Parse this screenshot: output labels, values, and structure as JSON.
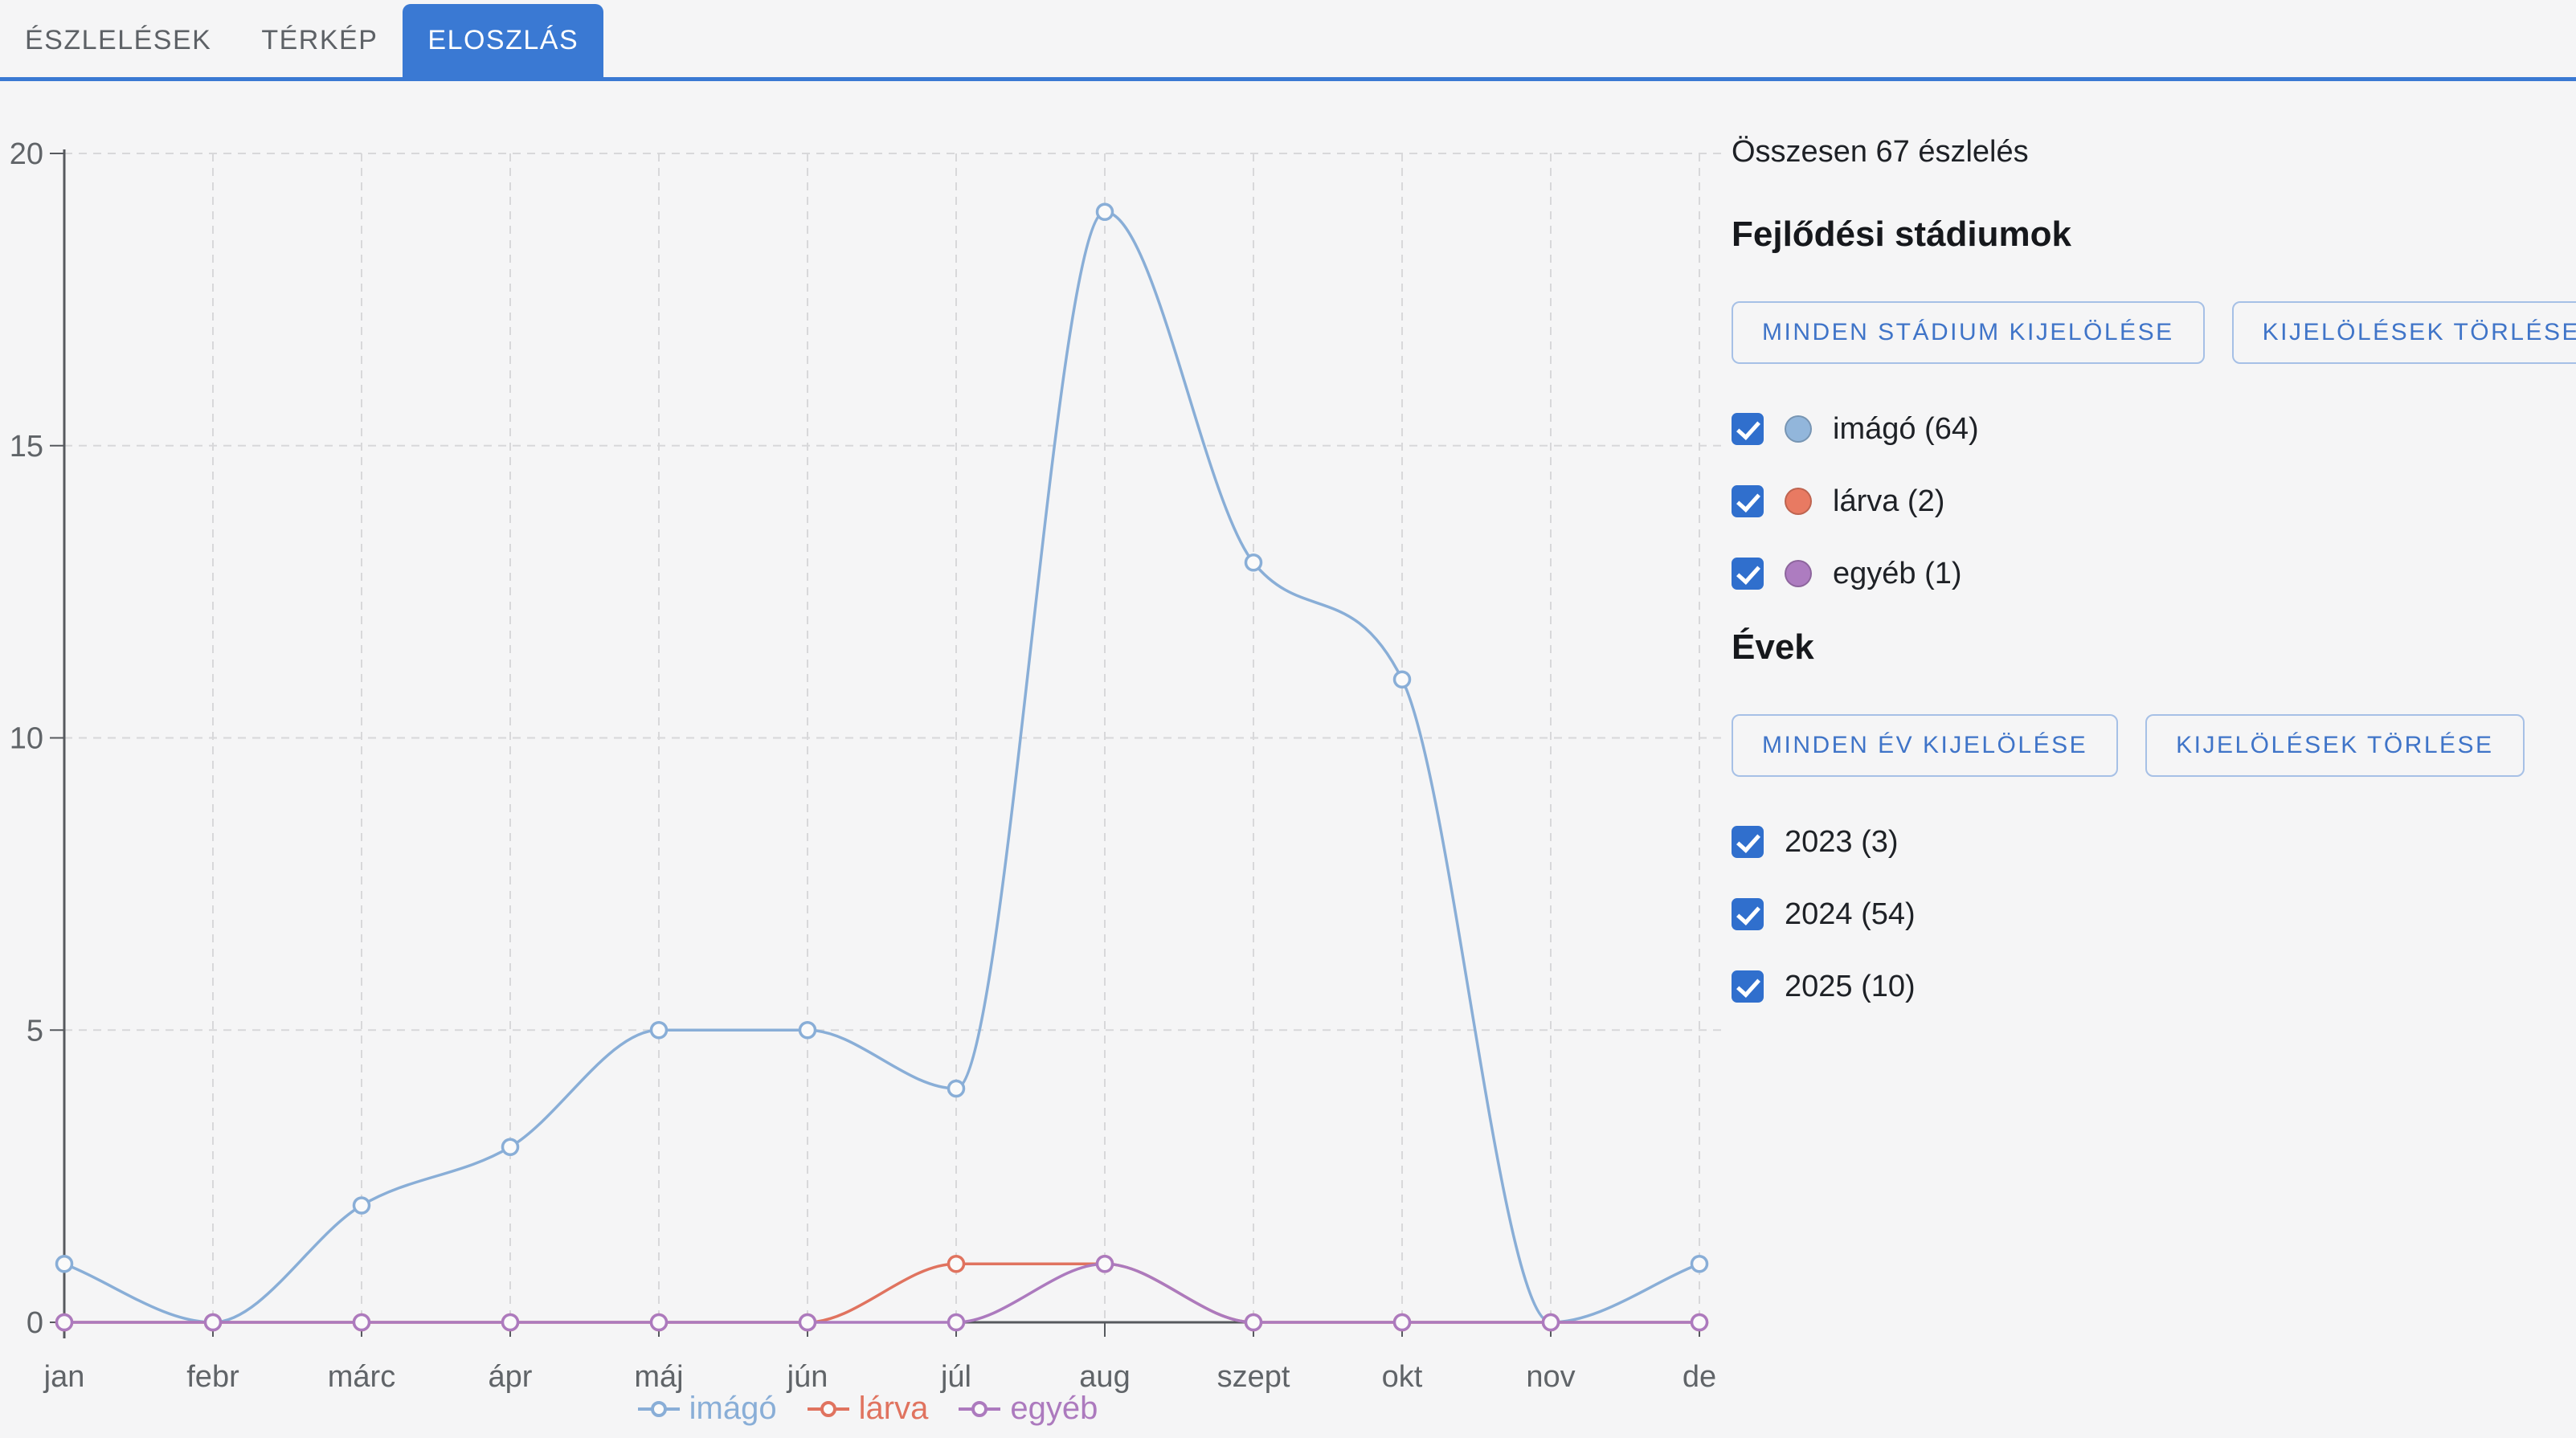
{
  "accent_color": "#3a79d3",
  "tabs": [
    {
      "label": "ÉSZLELÉSEK",
      "active": false
    },
    {
      "label": "TÉRKÉP",
      "active": false
    },
    {
      "label": "ELOSZLÁS",
      "active": true
    }
  ],
  "sidebar": {
    "total_label": "Összesen 67 észlelés",
    "stages_heading": "Fejlődési stádiumok",
    "stages_select_all": "MINDEN STÁDIUM KIJELÖLÉSE",
    "stages_clear": "KIJELÖLÉSEK TÖRLÉSE",
    "stages": [
      {
        "label": "imágó (64)",
        "checked": true,
        "color": "#92b6db"
      },
      {
        "label": "lárva (2)",
        "checked": true,
        "color": "#e87a62"
      },
      {
        "label": "egyéb (1)",
        "checked": true,
        "color": "#ad7cc0"
      }
    ],
    "years_heading": "Évek",
    "years_select_all": "MINDEN ÉV KIJELÖLÉSE",
    "years_clear": "KIJELÖLÉSEK TÖRLÉSE",
    "years": [
      {
        "label": "2023 (3)",
        "checked": true
      },
      {
        "label": "2024 (54)",
        "checked": true
      },
      {
        "label": "2025 (10)",
        "checked": true
      }
    ],
    "checkbox_color": "#306fcd"
  },
  "chart_data": {
    "type": "line",
    "title": "",
    "xlabel": "",
    "ylabel": "",
    "categories": [
      "jan",
      "febr",
      "márc",
      "ápr",
      "máj",
      "jún",
      "júl",
      "aug",
      "szept",
      "okt",
      "nov",
      "de"
    ],
    "series": [
      {
        "name": "imágó",
        "color": "#89aed7",
        "values": [
          1,
          0,
          2,
          3,
          5,
          5,
          4,
          19,
          13,
          11,
          0,
          1
        ]
      },
      {
        "name": "lárva",
        "color": "#e0735f",
        "values": [
          0,
          0,
          0,
          0,
          0,
          0,
          1,
          1,
          0,
          0,
          0,
          0
        ]
      },
      {
        "name": "egyéb",
        "color": "#ac7abe",
        "values": [
          0,
          0,
          0,
          0,
          0,
          0,
          0,
          1,
          0,
          0,
          0,
          0
        ]
      }
    ],
    "ylim": [
      0,
      20
    ],
    "yticks": [
      0,
      5,
      10,
      15,
      20
    ],
    "grid": true,
    "grid_color": "#d8d8da",
    "axis_color": "#56595e",
    "tick_label_color": "#606468",
    "marker_fill": "#fafafa",
    "legend_position": "bottom"
  }
}
